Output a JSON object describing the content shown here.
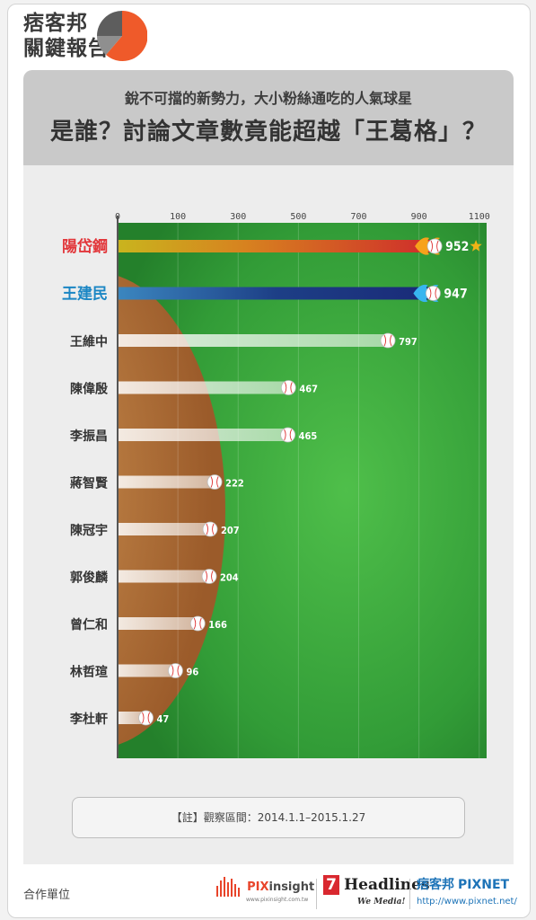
{
  "brand": {
    "line1": "痞客邦",
    "line2": "關鍵報告"
  },
  "header": {
    "subtitle": "銳不可擋的新勢力，大小粉絲通吃的人氣球星",
    "title": "是誰？討論文章數竟能超越「王葛格」？"
  },
  "note": "【註】觀察區間：2014.1.1–2015.1.27",
  "footer": {
    "label": "合作單位",
    "partner1_prefix": "PIX",
    "partner1_suffix": "insight",
    "partner1_url": "www.pixinsight.com.tw",
    "partner2_num": "7",
    "partner2_name": "Headlines",
    "partner2_tag": "We Media!",
    "partner3_cn": "痞客邦",
    "partner3_en": "PIXNET",
    "partner3_url": "http://www.pixnet.net/"
  },
  "colors": {
    "field_green": "#2f9a3a",
    "infield_brown": "#b5773c",
    "highlight_red": "#e2363a",
    "highlight_blue": "#1b86c4",
    "star": "#f0b416"
  },
  "chart_data": {
    "type": "bar",
    "orientation": "horizontal",
    "categories": [
      "陽岱鋼",
      "王建民",
      "王維中",
      "陳偉殷",
      "李振昌",
      "蔣智賢",
      "陳冠宇",
      "郭俊麟",
      "曾仁和",
      "林哲瑄",
      "李杜軒"
    ],
    "values": [
      952,
      947,
      797,
      467,
      465,
      222,
      207,
      204,
      166,
      96,
      47
    ],
    "value_labels": [
      "952",
      "947",
      "797",
      "467",
      "465",
      "222",
      "207",
      "204",
      "166",
      "96",
      "47"
    ],
    "xticks": [
      "0",
      "100",
      "300",
      "500",
      "700",
      "900",
      "1100"
    ],
    "xlim": [
      0,
      1100
    ],
    "highlight": {
      "陽岱鋼": "red",
      "王建民": "blue"
    },
    "star_on": "陽岱鋼",
    "grid": true
  }
}
